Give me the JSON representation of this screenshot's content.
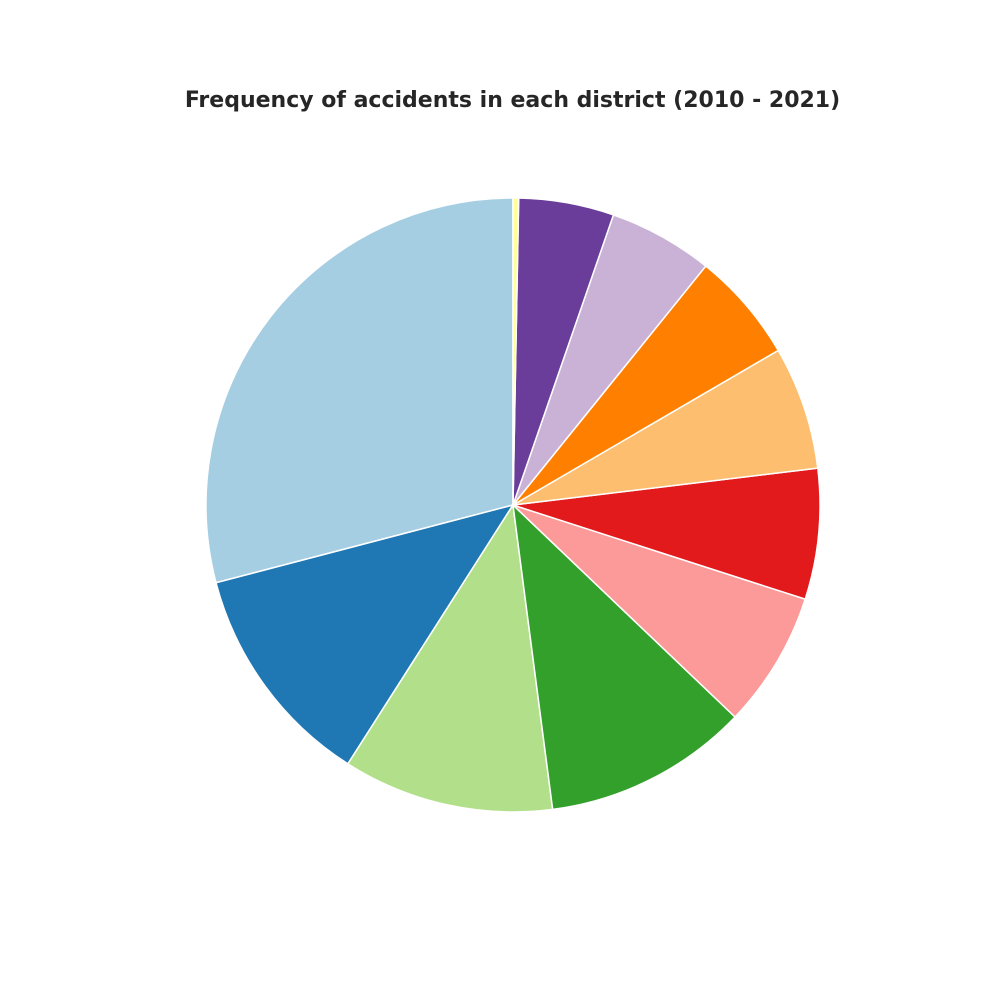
{
  "chart_data": {
    "type": "pie",
    "title": "Frequency of accidents in each district (2010 - 2021)",
    "start_angle_deg": 90,
    "direction": "counterclockwise",
    "slices": [
      {
        "value": 29.6,
        "color": "#a6cee3"
      },
      {
        "value": 12.1,
        "color": "#1f78b4"
      },
      {
        "value": 11.3,
        "color": "#b2df8a"
      },
      {
        "value": 11.0,
        "color": "#33a02c"
      },
      {
        "value": 7.3,
        "color": "#fb9a99"
      },
      {
        "value": 7.0,
        "color": "#e31a1c"
      },
      {
        "value": 6.6,
        "color": "#fdbf6f"
      },
      {
        "value": 5.9,
        "color": "#ff7f00"
      },
      {
        "value": 5.6,
        "color": "#cab2d6"
      },
      {
        "value": 5.1,
        "color": "#6a3d9a"
      },
      {
        "value": 0.3,
        "color": "#ffff99"
      }
    ]
  }
}
